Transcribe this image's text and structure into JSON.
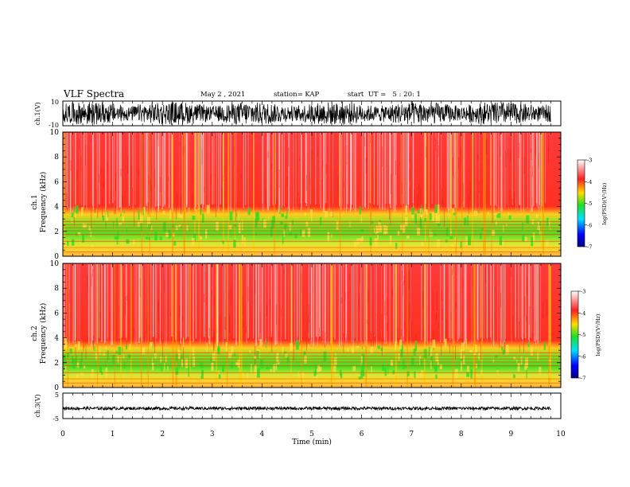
{
  "header": {
    "title": "VLF Spectra",
    "date": "May 2 , 2021",
    "station": "station= KAP",
    "start": "start  UT =   5 : 20: 1"
  },
  "chart_data": [
    {
      "type": "line",
      "panel": "ch1-waveform",
      "ylabel": "ch.1(V)",
      "ylim": [
        -10,
        10
      ],
      "yticks": [
        "10",
        "-10"
      ],
      "xlim": [
        0,
        9.8
      ],
      "description_values": "dense oscillating waveform spanning roughly -10 to 10 V",
      "series_color": "#000000"
    },
    {
      "type": "heatmap",
      "panel": "ch1-spectrogram",
      "ylabel": "ch.1\nFrequency (kHz)",
      "ylabel_lines": [
        "ch.1",
        "Frequency (kHz)"
      ],
      "ylim": [
        0,
        10
      ],
      "yticks": [
        "0",
        "2",
        "4",
        "6",
        "8",
        "10"
      ],
      "xlim": [
        0,
        9.8
      ],
      "colorbar": {
        "label": "log(PSD)(V²/Hz)",
        "range": [
          -7,
          -3
        ],
        "ticks": [
          "-3",
          "-4",
          "-5",
          "-6",
          "-7"
        ]
      },
      "bands": [
        {
          "f_from": 0,
          "f_to": 0.6,
          "level": "orange-yellow"
        },
        {
          "f_from": 0.6,
          "f_to": 3.5,
          "level": "green-yellow"
        },
        {
          "f_from": 3.5,
          "f_to": 10,
          "level": "red"
        }
      ]
    },
    {
      "type": "heatmap",
      "panel": "ch2-spectrogram",
      "ylabel": "ch.2\nFrequency (kHz)",
      "ylabel_lines": [
        "ch.2",
        "Frequency (kHz)"
      ],
      "ylim": [
        0,
        10
      ],
      "yticks": [
        "0",
        "2",
        "4",
        "6",
        "8",
        "10"
      ],
      "xlim": [
        0,
        9.8
      ],
      "colorbar": {
        "label": "log(PSD)(V²/Hz)",
        "range": [
          -7,
          -3
        ],
        "ticks": [
          "-3",
          "-4",
          "-5",
          "-6",
          "-7"
        ]
      },
      "bands": [
        {
          "f_from": 0,
          "f_to": 0.6,
          "level": "orange-yellow"
        },
        {
          "f_from": 0.6,
          "f_to": 3.3,
          "level": "green-yellow"
        },
        {
          "f_from": 3.3,
          "f_to": 10,
          "level": "red"
        }
      ]
    },
    {
      "type": "line",
      "panel": "ch3-waveform",
      "ylabel": "ch.3(V)",
      "ylim": [
        -5,
        5
      ],
      "yticks": [
        "5",
        "-5"
      ],
      "xlim": [
        0,
        9.8
      ],
      "description_values": "narrow dense band centred near -1 V",
      "series_color": "#000000"
    }
  ],
  "xaxis": {
    "label": "Time (min)",
    "ticks": [
      "0",
      "1",
      "2",
      "3",
      "4",
      "5",
      "6",
      "7",
      "8",
      "9",
      "10"
    ],
    "range": [
      0,
      10
    ]
  },
  "colors": {
    "red": "#ff2020",
    "green": "#22dd22",
    "yellow": "#ffdd00",
    "blue": "#0000ff",
    "dark_blue": "#000080",
    "cyan": "#00e0ff",
    "white": "#ffffff"
  }
}
